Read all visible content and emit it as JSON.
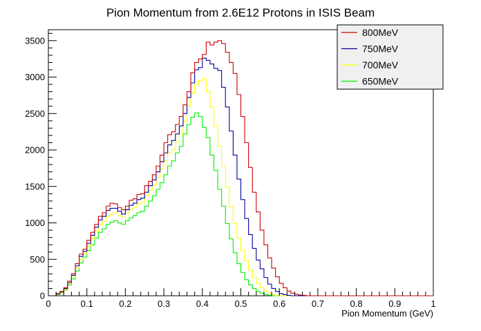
{
  "chart_data": {
    "type": "line",
    "title": "Pion Momentum from 2.6E12 Protons in ISIS Beam",
    "xlabel": "Pion Momentum (GeV)",
    "ylabel": "",
    "xlim": [
      0,
      1
    ],
    "ylim": [
      0,
      3650
    ],
    "x_ticks": [
      "0",
      "0.1",
      "0.2",
      "0.3",
      "0.4",
      "0.5",
      "0.6",
      "0.7",
      "0.8",
      "0.9",
      "1"
    ],
    "y_ticks": [
      "0",
      "500",
      "1000",
      "1500",
      "2000",
      "2500",
      "3000",
      "3500"
    ],
    "legend_position": "top-right",
    "grid": false,
    "bin_width": 0.01,
    "series": [
      {
        "name": "800MeV",
        "color": "#cc0000",
        "values": [
          0,
          0,
          30,
          60,
          110,
          200,
          300,
          440,
          570,
          640,
          760,
          870,
          980,
          1090,
          1140,
          1230,
          1270,
          1260,
          1210,
          1180,
          1230,
          1310,
          1330,
          1390,
          1400,
          1510,
          1570,
          1660,
          1780,
          1930,
          2100,
          2210,
          2250,
          2350,
          2460,
          2620,
          2800,
          3060,
          3200,
          3250,
          3310,
          3480,
          3440,
          3480,
          3500,
          3460,
          3340,
          3200,
          3050,
          2760,
          2460,
          2100,
          1760,
          1420,
          1150,
          900,
          700,
          520,
          380,
          260,
          170,
          110,
          65,
          35,
          20,
          10,
          5,
          0,
          0,
          0,
          0,
          0,
          0,
          0,
          0,
          0,
          0,
          0,
          0,
          0,
          0,
          0,
          0,
          0,
          0,
          0,
          0,
          0,
          0,
          0,
          0,
          0,
          0,
          0,
          0,
          0,
          0,
          0,
          0,
          0
        ]
      },
      {
        "name": "750MeV",
        "color": "#000099",
        "values": [
          0,
          0,
          25,
          55,
          100,
          180,
          280,
          410,
          540,
          610,
          720,
          830,
          940,
          1040,
          1090,
          1170,
          1200,
          1200,
          1160,
          1120,
          1180,
          1240,
          1270,
          1320,
          1340,
          1420,
          1510,
          1590,
          1700,
          1840,
          1960,
          2070,
          2130,
          2220,
          2330,
          2500,
          2720,
          2920,
          3100,
          3130,
          3260,
          3230,
          3180,
          3120,
          3090,
          2860,
          2590,
          2260,
          1930,
          1600,
          1320,
          1060,
          840,
          650,
          490,
          370,
          250,
          160,
          100,
          60,
          30,
          15,
          5,
          0,
          0,
          0,
          0,
          0,
          0,
          0,
          0,
          0,
          0,
          0,
          0,
          0,
          0,
          0,
          0,
          0,
          0,
          0,
          0,
          0,
          0,
          0,
          0,
          0,
          0,
          0,
          0,
          0,
          0,
          0,
          0,
          0,
          0,
          0,
          0,
          0
        ]
      },
      {
        "name": "700MeV",
        "color": "#ffff00",
        "values": [
          0,
          0,
          20,
          50,
          90,
          170,
          260,
          380,
          500,
          580,
          680,
          780,
          880,
          970,
          1020,
          1090,
          1120,
          1140,
          1100,
          1080,
          1130,
          1180,
          1210,
          1260,
          1280,
          1370,
          1450,
          1520,
          1620,
          1740,
          1850,
          1960,
          2000,
          2110,
          2220,
          2390,
          2600,
          2780,
          2900,
          2950,
          2980,
          2800,
          2590,
          2330,
          2050,
          1780,
          1490,
          1220,
          990,
          790,
          620,
          480,
          350,
          250,
          170,
          110,
          65,
          35,
          15,
          5,
          0,
          0,
          0,
          0,
          0,
          0,
          0,
          0,
          0,
          0,
          0,
          0,
          0,
          0,
          0,
          0,
          0,
          0,
          0,
          0,
          0,
          0,
          0,
          0,
          0,
          0,
          0,
          0,
          0,
          0,
          0,
          0,
          0,
          0,
          0,
          0,
          0,
          0,
          0,
          0
        ]
      },
      {
        "name": "650MeV",
        "color": "#00ee00",
        "values": [
          0,
          0,
          15,
          40,
          80,
          150,
          230,
          340,
          450,
          530,
          620,
          700,
          790,
          870,
          920,
          980,
          1010,
          1030,
          1000,
          980,
          1030,
          1070,
          1100,
          1140,
          1160,
          1230,
          1300,
          1370,
          1460,
          1550,
          1660,
          1780,
          1850,
          1960,
          2050,
          2220,
          2350,
          2450,
          2510,
          2460,
          2310,
          2170,
          1930,
          1720,
          1460,
          1230,
          990,
          780,
          590,
          440,
          320,
          220,
          150,
          100,
          60,
          35,
          18,
          8,
          0,
          0,
          0,
          0,
          0,
          0,
          0,
          0,
          0,
          0,
          0,
          0,
          0,
          0,
          0,
          0,
          0,
          0,
          0,
          0,
          0,
          0,
          0,
          0,
          0,
          0,
          0,
          0,
          0,
          0,
          0,
          0,
          0,
          0,
          0,
          0,
          0,
          0,
          0,
          0,
          0,
          0
        ]
      }
    ]
  }
}
